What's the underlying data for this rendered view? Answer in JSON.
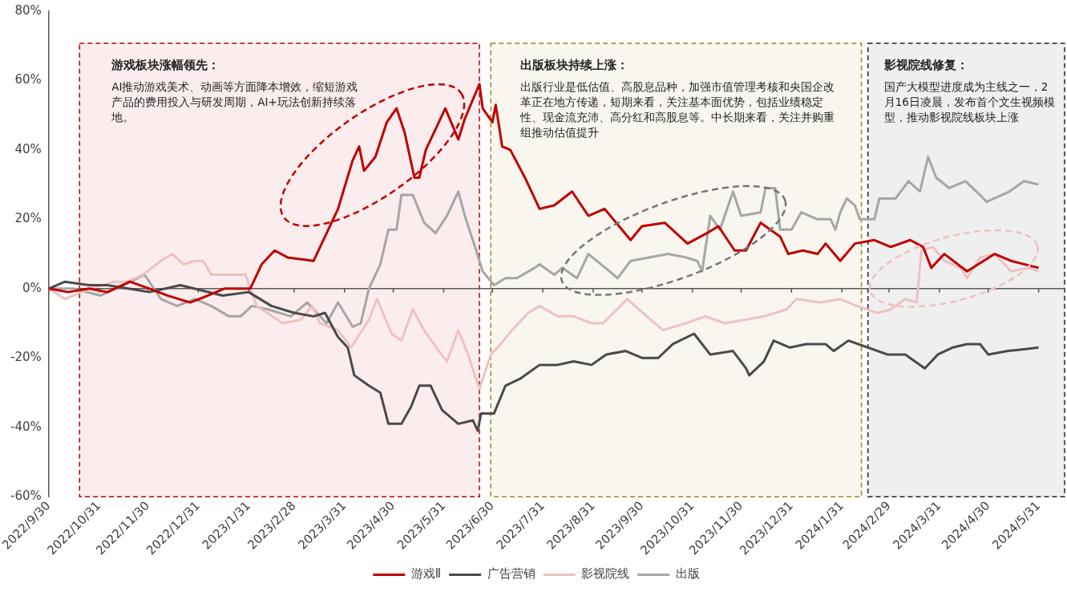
{
  "chart_data": {
    "type": "line",
    "xlim": [
      "2022-09-30",
      "2024-06-16"
    ],
    "xticks": [
      {
        "value": "2022-09-30",
        "label": "2022/9/30"
      },
      {
        "value": "2022-10-31",
        "label": "2022/10/31"
      },
      {
        "value": "2022-11-30",
        "label": "2022/11/30"
      },
      {
        "value": "2022-12-31",
        "label": "2022/12/31"
      },
      {
        "value": "2023-01-31",
        "label": "2023/1/31"
      },
      {
        "value": "2023-02-28",
        "label": "2023/2/28"
      },
      {
        "value": "2023-03-31",
        "label": "2023/3/31"
      },
      {
        "value": "2023-04-30",
        "label": "2023/4/30"
      },
      {
        "value": "2023-05-31",
        "label": "2023/5/31"
      },
      {
        "value": "2023-06-30",
        "label": "2023/6/30"
      },
      {
        "value": "2023-07-31",
        "label": "2023/7/31"
      },
      {
        "value": "2023-08-31",
        "label": "2023/8/31"
      },
      {
        "value": "2023-09-30",
        "label": "2023/9/30"
      },
      {
        "value": "2023-10-31",
        "label": "2023/10/31"
      },
      {
        "value": "2023-11-30",
        "label": "2023/11/30"
      },
      {
        "value": "2023-12-31",
        "label": "2023/12/31"
      },
      {
        "value": "2024-01-31",
        "label": "2024/1/31"
      },
      {
        "value": "2024-02-29",
        "label": "2024/2/29"
      },
      {
        "value": "2024-03-31",
        "label": "2024/3/31"
      },
      {
        "value": "2024-04-30",
        "label": "2024/4/30"
      },
      {
        "value": "2024-05-31",
        "label": "2024/5/31"
      }
    ],
    "ylim": [
      -60,
      80
    ],
    "yticks": [
      {
        "value": -60,
        "label": "-60%"
      },
      {
        "value": -40,
        "label": "-40%"
      },
      {
        "value": -20,
        "label": "-20%"
      },
      {
        "value": 0,
        "label": "0%"
      },
      {
        "value": 20,
        "label": "20%"
      },
      {
        "value": 40,
        "label": "40%"
      },
      {
        "value": 60,
        "label": "60%"
      },
      {
        "value": 80,
        "label": "80%"
      }
    ],
    "grid": false,
    "legend": "bottom",
    "marker": "none",
    "line_style": "solid",
    "ref_lines": [
      {
        "axis": "y",
        "value": 0,
        "color": "#595959"
      }
    ],
    "bands": [
      {
        "axis": "x",
        "from": "2022-10-19",
        "to": "2023-06-22",
        "label": "游戏板块涨幅领先：",
        "color": "#c00000"
      },
      {
        "axis": "x",
        "from": "2023-06-29",
        "to": "2024-02-12",
        "label": "出版板块持续上涨：",
        "color": "#9c8520"
      },
      {
        "axis": "x",
        "from": "2024-02-16",
        "to": "2024-06-16",
        "label": "影视院线修复：",
        "color": "#222222"
      }
    ],
    "annotations": [
      "AI推动游戏美术、动画等方面降本增效，缩短游戏产品的费用投入与研发周期，AI+玩法创新持续落地。",
      "出版行业是低估值、高股息品种，加强市值管理考核和央国企改革正在地方传递，短期来看，关注基本面优势，包括业绩稳定性、现金流充沛、高分红和高股息等。中长期来看，关注并购重组推动估值提升",
      "国产大模型进度成为主线之一，2月16日凌晨，发布首个文生视频模型，推动影视院线板块上涨"
    ],
    "series": [
      {
        "name": "游戏Ⅱ",
        "color": "#c00000",
        "x": [
          "2022-09-30",
          "2022-10-12",
          "2022-10-25",
          "2022-11-05",
          "2022-11-19",
          "2022-12-01",
          "2022-12-12",
          "2022-12-26",
          "2023-01-06",
          "2023-01-16",
          "2023-02-01",
          "2023-02-08",
          "2023-02-16",
          "2023-02-24",
          "2023-03-12",
          "2023-03-27",
          "2023-04-05",
          "2023-04-09",
          "2023-04-12",
          "2023-04-19",
          "2023-04-26",
          "2023-05-02",
          "2023-05-07",
          "2023-05-13",
          "2023-05-16",
          "2023-05-20",
          "2023-06-01",
          "2023-06-09",
          "2023-06-13",
          "2023-06-22",
          "2023-06-24",
          "2023-06-30",
          "2023-07-02",
          "2023-07-06",
          "2023-07-11",
          "2023-07-20",
          "2023-07-29",
          "2023-08-07",
          "2023-08-18",
          "2023-08-28",
          "2023-09-07",
          "2023-09-23",
          "2023-09-30",
          "2023-10-14",
          "2023-10-28",
          "2023-11-09",
          "2023-11-16",
          "2023-11-26",
          "2023-12-03",
          "2023-12-12",
          "2023-12-24",
          "2023-12-29",
          "2024-01-07",
          "2024-01-16",
          "2024-01-21",
          "2024-01-30",
          "2024-02-08",
          "2024-02-20",
          "2024-03-01",
          "2024-03-13",
          "2024-03-21",
          "2024-03-26",
          "2024-04-03",
          "2024-04-17",
          "2024-05-04",
          "2024-05-14",
          "2024-05-31"
        ],
        "values": [
          0,
          -1,
          0,
          -1,
          2,
          0,
          -2,
          -4,
          -2,
          0,
          0,
          7,
          11,
          9,
          8,
          23,
          37,
          41,
          34,
          38,
          48,
          52,
          45,
          32,
          32,
          40,
          52,
          43,
          49,
          59,
          52,
          48,
          53,
          41,
          40,
          32,
          23,
          24,
          28,
          21,
          23,
          14,
          18,
          19,
          13,
          16,
          18,
          11,
          11,
          19,
          15,
          10,
          11,
          10,
          13,
          8,
          13,
          14,
          12,
          14,
          12,
          6,
          10,
          5,
          10,
          8,
          6
        ]
      },
      {
        "name": "广告营销",
        "color": "#4a4a4a",
        "x": [
          "2022-09-30",
          "2022-10-10",
          "2022-10-25",
          "2022-11-05",
          "2022-11-18",
          "2022-12-01",
          "2022-12-20",
          "2023-01-15",
          "2023-01-31",
          "2023-02-14",
          "2023-02-28",
          "2023-03-12",
          "2023-03-19",
          "2023-03-27",
          "2023-04-02",
          "2023-04-06",
          "2023-04-15",
          "2023-04-22",
          "2023-04-27",
          "2023-05-05",
          "2023-05-11",
          "2023-05-16",
          "2023-05-23",
          "2023-05-30",
          "2023-06-09",
          "2023-06-18",
          "2023-06-21",
          "2023-06-23",
          "2023-07-01",
          "2023-07-08",
          "2023-07-17",
          "2023-07-29",
          "2023-08-09",
          "2023-08-19",
          "2023-08-30",
          "2023-09-08",
          "2023-09-20",
          "2023-09-30",
          "2023-10-10",
          "2023-10-19",
          "2023-11-01",
          "2023-11-11",
          "2023-11-25",
          "2023-12-03",
          "2023-12-05",
          "2023-12-14",
          "2023-12-20",
          "2023-12-30",
          "2024-01-09",
          "2024-01-21",
          "2024-01-26",
          "2024-02-04",
          "2024-02-16",
          "2024-02-28",
          "2024-03-10",
          "2024-03-22",
          "2024-03-30",
          "2024-04-08",
          "2024-04-17",
          "2024-04-25",
          "2024-04-30",
          "2024-05-12",
          "2024-05-31"
        ],
        "values": [
          0,
          2,
          1,
          1,
          0,
          -1,
          1,
          -2,
          -1,
          -5,
          -7,
          -8,
          -7,
          -14,
          -17,
          -25,
          -28,
          -30,
          -39,
          -39,
          -34,
          -28,
          -28,
          -35,
          -39,
          -38,
          -41,
          -36,
          -36,
          -28,
          -26,
          -22,
          -22,
          -21,
          -22,
          -19,
          -18,
          -20,
          -20,
          -16,
          -13,
          -19,
          -18,
          -23,
          -25,
          -21,
          -15,
          -17,
          -16,
          -16,
          -18,
          -15,
          -17,
          -19,
          -19,
          -23,
          -19,
          -17,
          -16,
          -16,
          -19,
          -18,
          -17
        ]
      },
      {
        "name": "影视院线",
        "color": "#efc1c1",
        "x": [
          "2022-09-30",
          "2022-10-10",
          "2022-10-25",
          "2022-11-10",
          "2022-11-17",
          "2022-11-27",
          "2022-12-08",
          "2022-12-15",
          "2022-12-22",
          "2022-12-29",
          "2023-01-03",
          "2023-01-08",
          "2023-01-19",
          "2023-01-29",
          "2023-02-05",
          "2023-02-21",
          "2023-03-04",
          "2023-03-11",
          "2023-03-16",
          "2023-03-27",
          "2023-04-04",
          "2023-04-15",
          "2023-04-20",
          "2023-04-29",
          "2023-05-05",
          "2023-05-12",
          "2023-05-19",
          "2023-05-28",
          "2023-06-02",
          "2023-06-09",
          "2023-06-15",
          "2023-06-22",
          "2023-06-29",
          "2023-07-05",
          "2023-07-12",
          "2023-07-22",
          "2023-07-29",
          "2023-08-09",
          "2023-08-19",
          "2023-08-30",
          "2023-09-06",
          "2023-09-21",
          "2023-10-03",
          "2023-10-13",
          "2023-10-27",
          "2023-11-08",
          "2023-11-20",
          "2023-12-02",
          "2023-12-14",
          "2023-12-28",
          "2024-01-03",
          "2024-01-18",
          "2024-01-30",
          "2024-02-09",
          "2024-02-22",
          "2024-03-01",
          "2024-03-10",
          "2024-03-17",
          "2024-03-20",
          "2024-03-27",
          "2024-04-03",
          "2024-04-13",
          "2024-04-17",
          "2024-04-25",
          "2024-05-04",
          "2024-05-14",
          "2024-05-25",
          "2024-05-31"
        ],
        "values": [
          0,
          -3,
          0,
          2,
          2,
          4,
          8,
          10,
          7,
          8,
          8,
          4,
          4,
          4,
          -5,
          -10,
          -9,
          -5,
          -10,
          -12,
          -17,
          -9,
          -3,
          -13,
          -15,
          -6,
          -12,
          -18,
          -21,
          -12,
          -19,
          -29,
          -19,
          -16,
          -12,
          -7,
          -5,
          -8,
          -8,
          -10,
          -10,
          -3,
          -8,
          -12,
          -10,
          -8,
          -10,
          -9,
          -8,
          -6,
          -3,
          -4,
          -3,
          -5,
          -7,
          -6,
          -3,
          -4,
          11,
          12,
          8,
          6,
          3,
          9,
          10,
          5,
          6,
          5
        ]
      },
      {
        "name": "出版",
        "color": "#a6a6a6",
        "x": [
          "2022-09-30",
          "2022-10-15",
          "2022-11-01",
          "2022-11-15",
          "2022-11-28",
          "2022-12-08",
          "2022-12-18",
          "2022-12-29",
          "2023-01-08",
          "2023-01-19",
          "2023-01-26",
          "2023-02-02",
          "2023-02-12",
          "2023-02-26",
          "2023-03-08",
          "2023-03-20",
          "2023-03-27",
          "2023-04-05",
          "2023-04-10",
          "2023-04-15",
          "2023-04-22",
          "2023-04-27",
          "2023-05-02",
          "2023-05-05",
          "2023-05-12",
          "2023-05-19",
          "2023-05-26",
          "2023-06-02",
          "2023-06-09",
          "2023-06-13",
          "2023-06-20",
          "2023-06-24",
          "2023-07-01",
          "2023-07-08",
          "2023-07-15",
          "2023-07-26",
          "2023-07-29",
          "2023-08-07",
          "2023-08-12",
          "2023-08-21",
          "2023-08-28",
          "2023-09-10",
          "2023-09-15",
          "2023-09-23",
          "2023-10-16",
          "2023-10-27",
          "2023-11-03",
          "2023-11-06",
          "2023-11-11",
          "2023-11-17",
          "2023-11-25",
          "2023-11-30",
          "2023-12-12",
          "2023-12-15",
          "2023-12-21",
          "2023-12-24",
          "2023-12-31",
          "2024-01-06",
          "2024-01-16",
          "2024-01-24",
          "2024-01-27",
          "2024-01-30",
          "2024-02-03",
          "2024-02-08",
          "2024-02-11",
          "2024-02-20",
          "2024-02-23",
          "2024-03-04",
          "2024-03-12",
          "2024-03-19",
          "2024-03-24",
          "2024-03-29",
          "2024-04-06",
          "2024-04-16",
          "2024-04-25",
          "2024-04-29",
          "2024-05-13",
          "2024-05-22",
          "2024-05-31"
        ],
        "values": [
          0,
          0,
          -2,
          1,
          4,
          -3,
          -5,
          -3,
          -5,
          -8,
          -8,
          -5,
          -6,
          -8,
          -4,
          -10,
          -4,
          -11,
          -10,
          0,
          7,
          17,
          17,
          27,
          27,
          19,
          16,
          21,
          28,
          21,
          11,
          5,
          1,
          3,
          3,
          6,
          7,
          4,
          6,
          3,
          10,
          5,
          3,
          8,
          10,
          9,
          8,
          5,
          21,
          17,
          28,
          21,
          22,
          29,
          29,
          17,
          17,
          22,
          20,
          20,
          17,
          22,
          26,
          24,
          20,
          20,
          26,
          26,
          31,
          28,
          38,
          32,
          29,
          31,
          27,
          25,
          28,
          31,
          30
        ]
      }
    ]
  }
}
